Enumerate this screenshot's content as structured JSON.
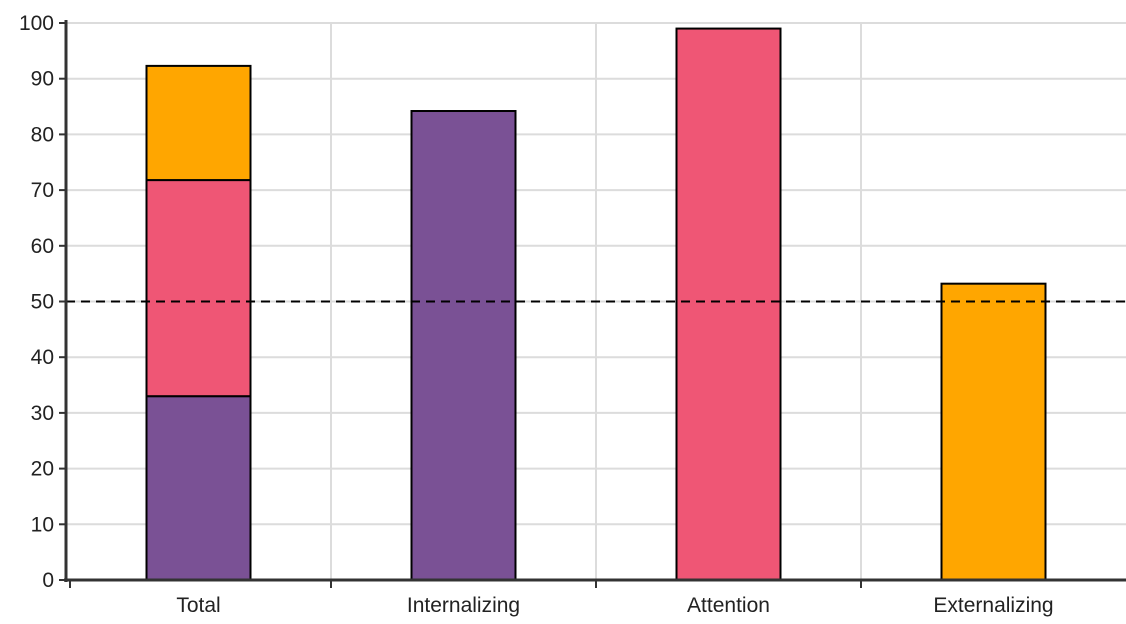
{
  "chart_data": {
    "type": "bar",
    "stacked": true,
    "categories": [
      "Total",
      "Internalizing",
      "Attention",
      "Externalizing"
    ],
    "series": [
      {
        "color": "#7a5195",
        "values": [
          33,
          84.2,
          0,
          0
        ]
      },
      {
        "color": "#ef5675",
        "values": [
          38.8,
          0,
          99,
          0
        ]
      },
      {
        "color": "#ffa600",
        "values": [
          20.5,
          0,
          0,
          53.2
        ]
      }
    ],
    "ylim": [
      0,
      100
    ],
    "yticks": [
      0,
      10,
      20,
      30,
      40,
      50,
      60,
      70,
      80,
      90,
      100
    ],
    "reference_line": {
      "value": 50,
      "style": "dashed",
      "color": "#000000"
    },
    "grid": true,
    "legend": "none",
    "title": "",
    "xlabel": "",
    "ylabel": ""
  }
}
